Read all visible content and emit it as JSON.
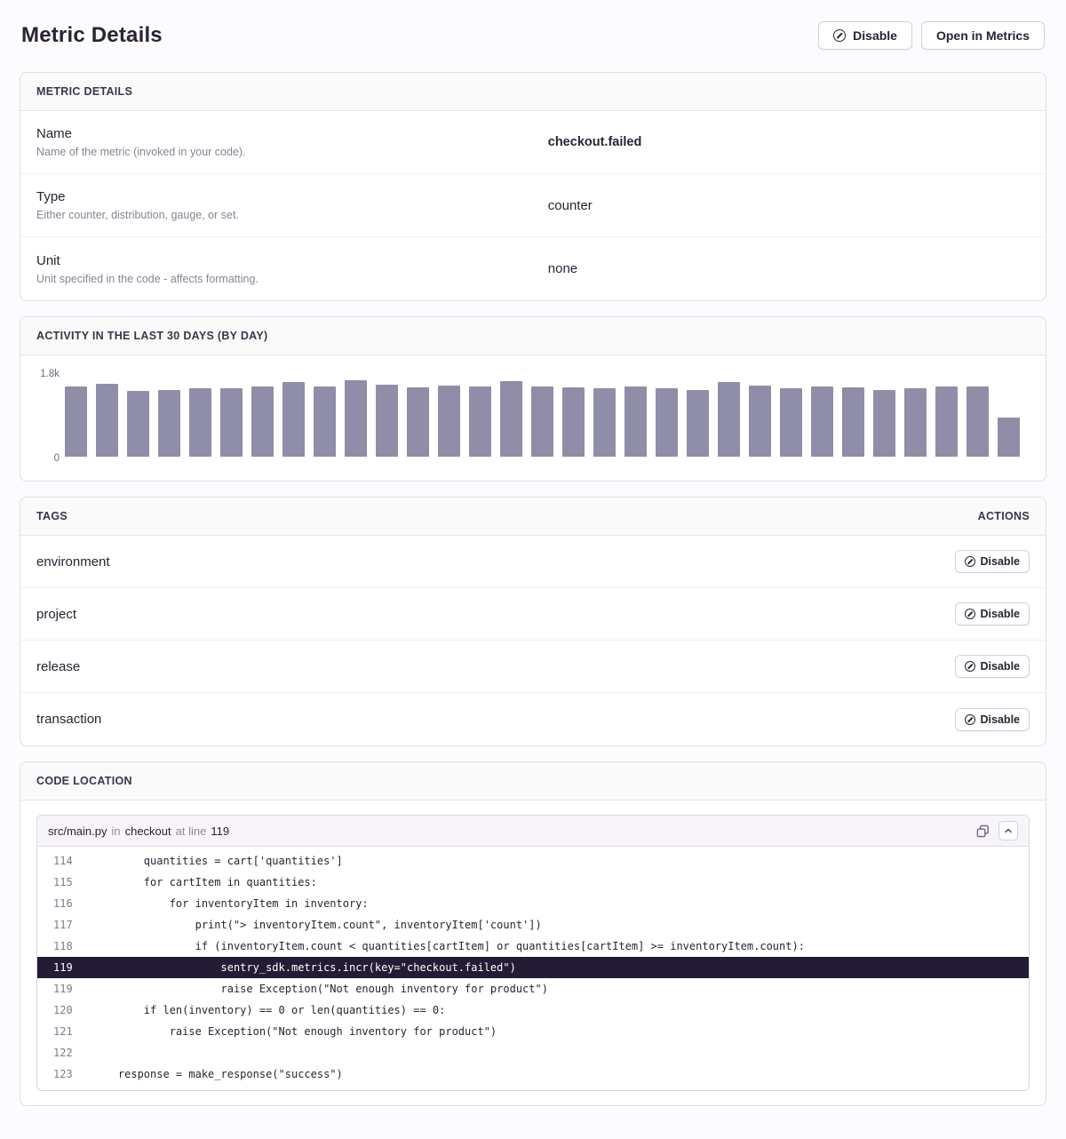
{
  "header": {
    "title": "Metric Details",
    "disable_button": "Disable",
    "open_button": "Open in Metrics"
  },
  "details_panel": {
    "title": "METRIC DETAILS",
    "rows": [
      {
        "label": "Name",
        "description": "Name of the metric (invoked in your code).",
        "value": "checkout.failed"
      },
      {
        "label": "Type",
        "description": "Either counter, distribution, gauge, or set.",
        "value": "counter"
      },
      {
        "label": "Unit",
        "description": "Unit specified in the code - affects formatting.",
        "value": "none"
      }
    ]
  },
  "activity_panel": {
    "title": "ACTIVITY IN THE LAST 30 DAYS (BY DAY)"
  },
  "chart_data": {
    "type": "bar",
    "title": "Activity in the last 30 days (by day)",
    "xlabel": "",
    "ylabel": "",
    "ylim": [
      0,
      1800
    ],
    "y_axis_labels": [
      "1.8k",
      "0"
    ],
    "grid": false,
    "legend": false,
    "bar_color": "#8f8da8",
    "values": [
      1560,
      1620,
      1470,
      1490,
      1520,
      1530,
      1560,
      1660,
      1570,
      1700,
      1600,
      1550,
      1590,
      1560,
      1680,
      1570,
      1550,
      1530,
      1570,
      1530,
      1480,
      1660,
      1590,
      1520,
      1560,
      1550,
      1490,
      1530,
      1560,
      1570,
      870
    ]
  },
  "tags_panel": {
    "title": "TAGS",
    "actions_label": "ACTIONS",
    "disable_label": "Disable",
    "rows": [
      {
        "name": "environment"
      },
      {
        "name": "project"
      },
      {
        "name": "release"
      },
      {
        "name": "transaction"
      }
    ]
  },
  "code_panel": {
    "title": "CODE LOCATION",
    "file": "src/main.py",
    "in_word": "in",
    "function": "checkout",
    "at_line_words": "at line",
    "line_number": "119",
    "lines": [
      {
        "no": "114",
        "code": "        quantities = cart['quantities']"
      },
      {
        "no": "115",
        "code": "        for cartItem in quantities:"
      },
      {
        "no": "116",
        "code": "            for inventoryItem in inventory:"
      },
      {
        "no": "117",
        "code": "                print(\"> inventoryItem.count\", inventoryItem['count'])"
      },
      {
        "no": "118",
        "code": "                if (inventoryItem.count < quantities[cartItem] or quantities[cartItem] >= inventoryItem.count):"
      },
      {
        "no": "119",
        "code": "                    sentry_sdk.metrics.incr(key=\"checkout.failed\")",
        "highlight": true
      },
      {
        "no": "119",
        "code": "                    raise Exception(\"Not enough inventory for product\")"
      },
      {
        "no": "120",
        "code": "        if len(inventory) == 0 or len(quantities) == 0:"
      },
      {
        "no": "121",
        "code": "            raise Exception(\"Not enough inventory for product\")"
      },
      {
        "no": "122",
        "code": ""
      },
      {
        "no": "123",
        "code": "    response = make_response(\"success\")"
      }
    ]
  }
}
